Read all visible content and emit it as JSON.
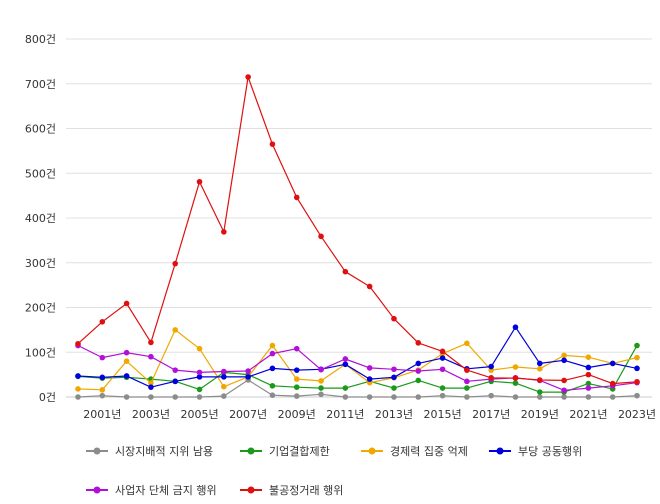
{
  "chart_data": {
    "type": "line",
    "x": [
      2000,
      2001,
      2002,
      2003,
      2004,
      2005,
      2006,
      2007,
      2008,
      2009,
      2010,
      2011,
      2012,
      2013,
      2014,
      2015,
      2016,
      2017,
      2018,
      2019,
      2020,
      2021,
      2022,
      2023
    ],
    "x_tick_labels": [
      "2001년",
      "2003년",
      "2005년",
      "2007년",
      "2009년",
      "2011년",
      "2013년",
      "2015년",
      "2017년",
      "2019년",
      "2021년",
      "2023년"
    ],
    "x_tick_values": [
      2001,
      2003,
      2005,
      2007,
      2009,
      2011,
      2013,
      2015,
      2017,
      2019,
      2021,
      2023
    ],
    "y_tick_labels": [
      "0건",
      "100건",
      "200건",
      "300건",
      "400건",
      "500건",
      "600건",
      "700건",
      "800건"
    ],
    "y_tick_values": [
      0,
      100,
      200,
      300,
      400,
      500,
      600,
      700,
      800
    ],
    "ylim": [
      0,
      800
    ],
    "grid": true,
    "legend_position": "bottom",
    "series": [
      {
        "name": "시장지배적 지위 남용",
        "color": "#8c8c8c",
        "values": [
          0,
          3,
          0,
          0,
          0,
          0,
          2,
          38,
          4,
          2,
          6,
          0,
          0,
          0,
          0,
          3,
          0,
          3,
          0,
          0,
          0,
          0,
          0,
          3
        ]
      },
      {
        "name": "기업결합제한",
        "color": "#1a9a1a",
        "values": [
          46,
          42,
          44,
          40,
          35,
          17,
          55,
          50,
          25,
          22,
          20,
          20,
          35,
          20,
          37,
          20,
          20,
          35,
          31,
          11,
          11,
          30,
          18,
          115
        ]
      },
      {
        "name": "경제력 집중 억제",
        "color": "#f0a800",
        "values": [
          18,
          16,
          80,
          31,
          150,
          108,
          23,
          45,
          115,
          40,
          36,
          73,
          32,
          43,
          60,
          97,
          120,
          60,
          67,
          63,
          93,
          89,
          75,
          88
        ]
      },
      {
        "name": "부당 공동행위",
        "color": "#0000dd",
        "values": [
          47,
          44,
          47,
          22,
          35,
          45,
          45,
          45,
          64,
          60,
          62,
          73,
          40,
          44,
          75,
          87,
          63,
          68,
          156,
          75,
          82,
          66,
          75,
          64
        ]
      },
      {
        "name": "사업자 단체 금지 행위",
        "color": "#b010d8",
        "values": [
          115,
          88,
          99,
          90,
          60,
          55,
          57,
          58,
          97,
          108,
          61,
          85,
          65,
          62,
          58,
          62,
          35,
          40,
          43,
          37,
          15,
          20,
          25,
          32
        ]
      },
      {
        "name": "불공정거래 행위",
        "color": "#e01010",
        "values": [
          119,
          168,
          209,
          122,
          298,
          481,
          369,
          715,
          565,
          446,
          359,
          280,
          247,
          175,
          121,
          102,
          60,
          43,
          42,
          38,
          37,
          50,
          30,
          34
        ]
      }
    ]
  }
}
